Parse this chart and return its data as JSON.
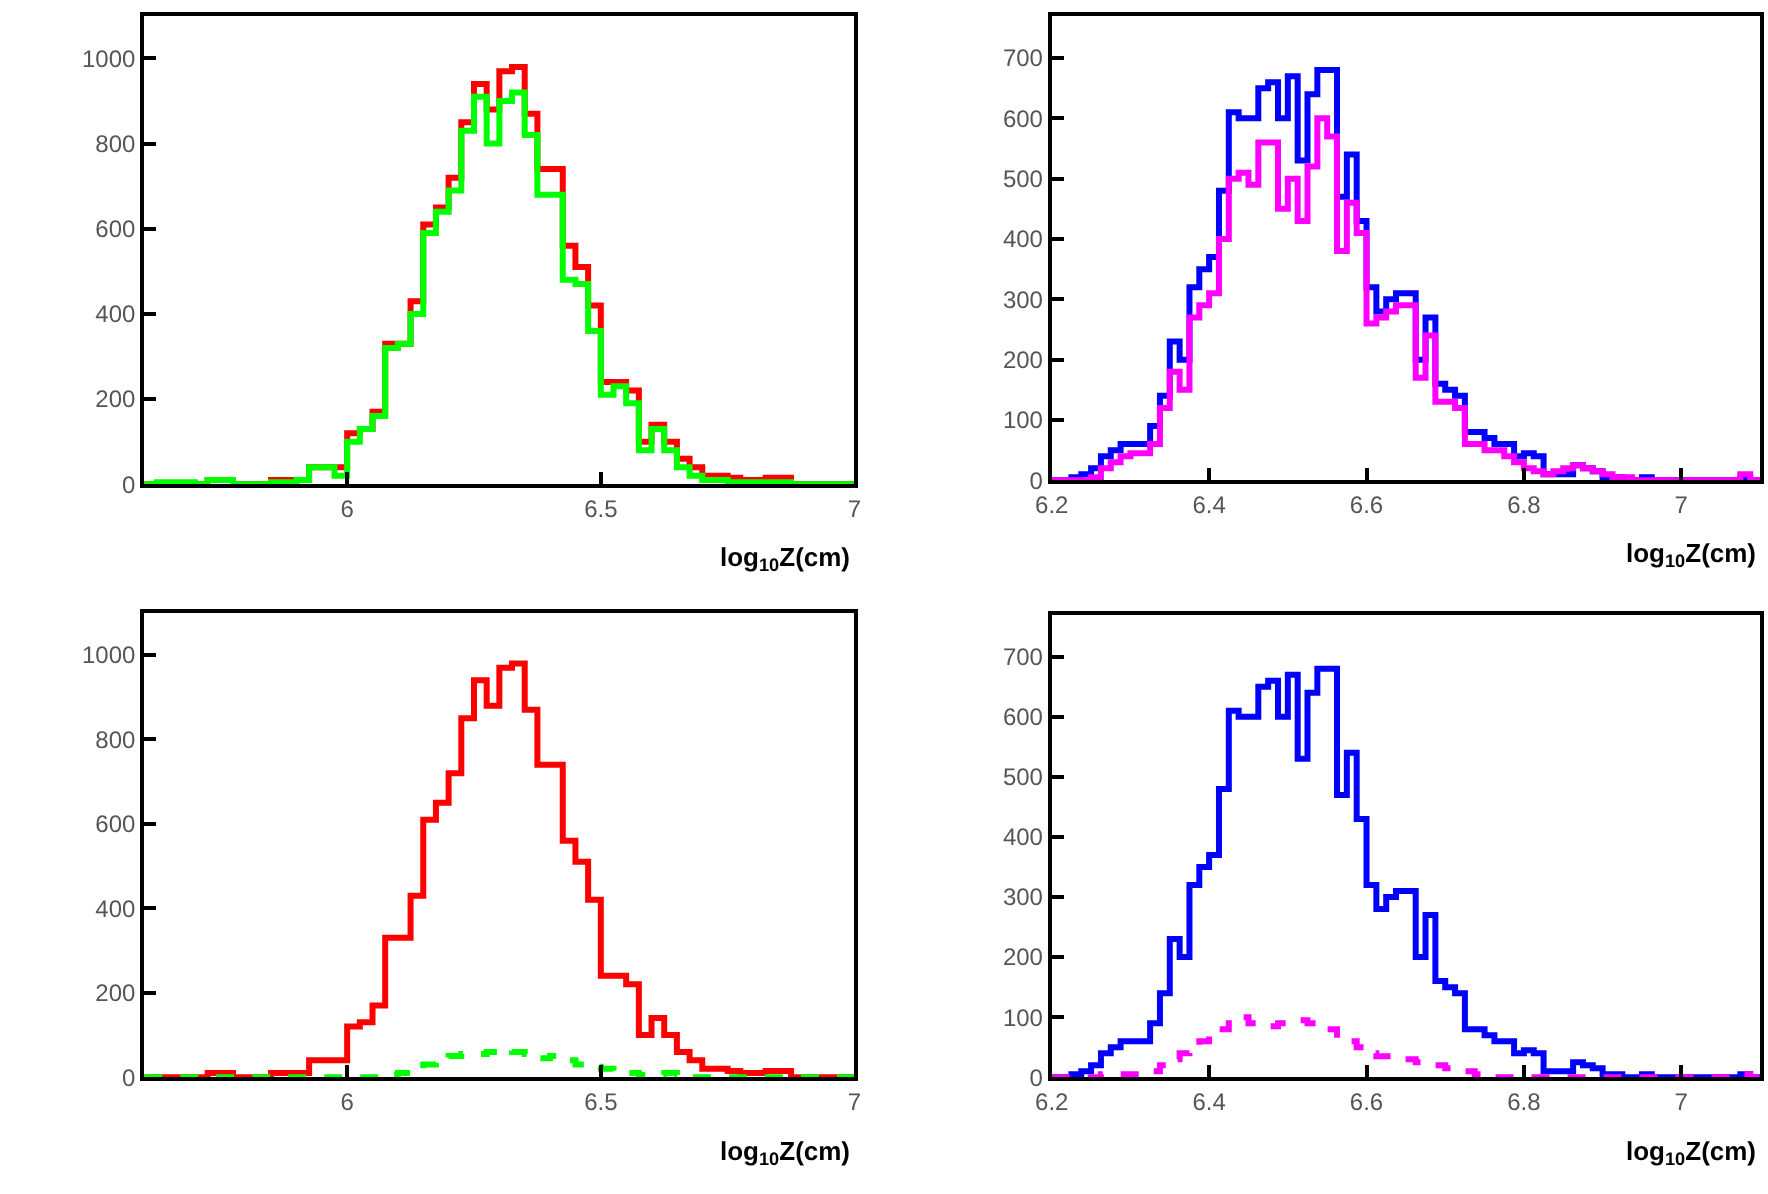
{
  "chart_data": [
    {
      "type": "histogram",
      "xlabel": "log$_{10}$Z(cm)",
      "xlim": [
        5.6,
        7
      ],
      "xticks": [
        6,
        6.5,
        7
      ],
      "ylim": [
        0,
        1100
      ],
      "yticks": [
        0,
        200,
        400,
        600,
        800,
        1000
      ],
      "grid": false,
      "bins": [
        5.6,
        5.625,
        5.65,
        5.675,
        5.7,
        5.725,
        5.75,
        5.775,
        5.8,
        5.825,
        5.85,
        5.875,
        5.9,
        5.925,
        5.95,
        5.975,
        6.0,
        6.025,
        6.05,
        6.075,
        6.1,
        6.125,
        6.15,
        6.175,
        6.2,
        6.225,
        6.25,
        6.275,
        6.3,
        6.325,
        6.35,
        6.375,
        6.4,
        6.425,
        6.45,
        6.475,
        6.5,
        6.525,
        6.55,
        6.575,
        6.6,
        6.625,
        6.65,
        6.675,
        6.7,
        6.725,
        6.75,
        6.775,
        6.8,
        6.825,
        6.85,
        6.875,
        6.9,
        6.925,
        6.95,
        6.975,
        7.0
      ],
      "series": [
        {
          "color": "#ff0000",
          "line_style": "solid",
          "values": [
            0,
            0,
            0,
            0,
            0,
            10,
            10,
            0,
            0,
            0,
            10,
            10,
            10,
            40,
            40,
            40,
            120,
            130,
            170,
            330,
            330,
            430,
            610,
            650,
            720,
            850,
            940,
            880,
            970,
            980,
            870,
            740,
            740,
            560,
            510,
            420,
            240,
            240,
            220,
            100,
            140,
            100,
            60,
            40,
            20,
            20,
            15,
            10,
            10,
            15,
            15,
            0,
            0,
            0,
            0,
            0
          ]
        },
        {
          "color": "#00ff00",
          "line_style": "solid",
          "values": [
            0,
            5,
            5,
            5,
            0,
            10,
            10,
            0,
            0,
            0,
            5,
            5,
            10,
            40,
            40,
            20,
            100,
            130,
            160,
            320,
            330,
            400,
            590,
            640,
            690,
            830,
            910,
            800,
            900,
            920,
            820,
            680,
            680,
            480,
            470,
            360,
            210,
            230,
            190,
            80,
            130,
            80,
            40,
            20,
            10,
            10,
            5,
            5,
            5,
            5,
            5,
            0,
            0,
            0,
            0,
            0
          ]
        }
      ]
    },
    {
      "type": "histogram",
      "xlabel": "log$_{10}$Z(cm)",
      "xlim": [
        6.2,
        7.1
      ],
      "xticks": [
        6.2,
        6.4,
        6.6,
        6.8,
        7
      ],
      "ylim": [
        0,
        770
      ],
      "yticks": [
        0,
        100,
        200,
        300,
        400,
        500,
        600,
        700
      ],
      "grid": false,
      "bins": [
        6.2,
        6.2125,
        6.225,
        6.2375,
        6.25,
        6.2625,
        6.275,
        6.2875,
        6.3,
        6.3125,
        6.325,
        6.3375,
        6.35,
        6.3625,
        6.375,
        6.3875,
        6.4,
        6.4125,
        6.425,
        6.4375,
        6.45,
        6.4625,
        6.475,
        6.4875,
        6.5,
        6.5125,
        6.525,
        6.5375,
        6.55,
        6.5625,
        6.575,
        6.5875,
        6.6,
        6.6125,
        6.625,
        6.6375,
        6.65,
        6.6625,
        6.675,
        6.6875,
        6.7,
        6.7125,
        6.725,
        6.7375,
        6.75,
        6.7625,
        6.775,
        6.7875,
        6.8,
        6.8125,
        6.825,
        6.8375,
        6.85,
        6.8625,
        6.875,
        6.8875,
        6.9,
        6.9125,
        6.925,
        6.9375,
        6.95,
        6.9625,
        6.975,
        6.9875,
        7.0,
        7.0125,
        7.025,
        7.0375,
        7.05,
        7.0625,
        7.075,
        7.0875,
        7.1
      ],
      "series": [
        {
          "color": "#0000ff",
          "line_style": "solid",
          "values": [
            0,
            0,
            5,
            10,
            20,
            40,
            50,
            60,
            60,
            60,
            90,
            140,
            230,
            200,
            320,
            350,
            370,
            480,
            610,
            600,
            600,
            650,
            660,
            600,
            670,
            530,
            640,
            680,
            680,
            470,
            540,
            430,
            320,
            280,
            300,
            310,
            310,
            200,
            270,
            160,
            150,
            140,
            80,
            80,
            70,
            60,
            60,
            40,
            45,
            40,
            10,
            10,
            10,
            25,
            20,
            15,
            5,
            5,
            0,
            0,
            5,
            0,
            0,
            0,
            0,
            0,
            0,
            0,
            0,
            0,
            5,
            0
          ]
        },
        {
          "color": "#ff00ff",
          "line_style": "solid",
          "values": [
            0,
            0,
            0,
            0,
            5,
            20,
            30,
            40,
            45,
            45,
            60,
            120,
            180,
            150,
            270,
            290,
            310,
            400,
            500,
            510,
            490,
            560,
            560,
            450,
            500,
            430,
            520,
            600,
            570,
            380,
            460,
            410,
            260,
            270,
            280,
            290,
            290,
            170,
            240,
            130,
            130,
            120,
            60,
            60,
            50,
            50,
            40,
            30,
            20,
            15,
            10,
            15,
            20,
            25,
            20,
            15,
            10,
            5,
            5,
            0,
            0,
            0,
            0,
            0,
            0,
            0,
            0,
            0,
            0,
            0,
            10,
            0
          ]
        }
      ]
    },
    {
      "type": "histogram",
      "xlabel": "log$_{10}$Z(cm)",
      "xlim": [
        5.6,
        7
      ],
      "xticks": [
        6,
        6.5,
        7
      ],
      "ylim": [
        0,
        1100
      ],
      "yticks": [
        0,
        200,
        400,
        600,
        800,
        1000
      ],
      "grid": false,
      "bins": [
        5.6,
        5.625,
        5.65,
        5.675,
        5.7,
        5.725,
        5.75,
        5.775,
        5.8,
        5.825,
        5.85,
        5.875,
        5.9,
        5.925,
        5.95,
        5.975,
        6.0,
        6.025,
        6.05,
        6.075,
        6.1,
        6.125,
        6.15,
        6.175,
        6.2,
        6.225,
        6.25,
        6.275,
        6.3,
        6.325,
        6.35,
        6.375,
        6.4,
        6.425,
        6.45,
        6.475,
        6.5,
        6.525,
        6.55,
        6.575,
        6.6,
        6.625,
        6.65,
        6.675,
        6.7,
        6.725,
        6.75,
        6.775,
        6.8,
        6.825,
        6.85,
        6.875,
        6.9,
        6.925,
        6.95,
        6.975,
        7.0
      ],
      "series": [
        {
          "color": "#ff0000",
          "line_style": "solid",
          "values": [
            0,
            0,
            0,
            0,
            0,
            10,
            10,
            0,
            0,
            0,
            10,
            10,
            10,
            40,
            40,
            40,
            120,
            130,
            170,
            330,
            330,
            430,
            610,
            650,
            720,
            850,
            940,
            880,
            970,
            980,
            870,
            740,
            740,
            560,
            510,
            420,
            240,
            240,
            220,
            100,
            140,
            100,
            60,
            40,
            20,
            20,
            15,
            10,
            10,
            15,
            15,
            0,
            0,
            0,
            0,
            0
          ]
        },
        {
          "color": "#00ff00",
          "line_style": "dashed",
          "values": [
            0,
            0,
            0,
            0,
            0,
            0,
            0,
            0,
            0,
            0,
            0,
            0,
            0,
            0,
            0,
            0,
            0,
            0,
            0,
            5,
            10,
            20,
            30,
            35,
            50,
            55,
            55,
            60,
            65,
            60,
            55,
            45,
            50,
            40,
            30,
            25,
            20,
            15,
            10,
            5,
            5,
            10,
            5,
            0,
            0,
            0,
            0,
            0,
            0,
            0,
            0,
            0,
            0,
            0,
            0,
            0
          ]
        }
      ]
    },
    {
      "type": "histogram",
      "xlabel": "log$_{10}$Z(cm)",
      "xlim": [
        6.2,
        7.1
      ],
      "xticks": [
        6.2,
        6.4,
        6.6,
        6.8,
        7
      ],
      "ylim": [
        0,
        770
      ],
      "yticks": [
        0,
        100,
        200,
        300,
        400,
        500,
        600,
        700
      ],
      "grid": false,
      "bins": [
        6.2,
        6.2125,
        6.225,
        6.2375,
        6.25,
        6.2625,
        6.275,
        6.2875,
        6.3,
        6.3125,
        6.325,
        6.3375,
        6.35,
        6.3625,
        6.375,
        6.3875,
        6.4,
        6.4125,
        6.425,
        6.4375,
        6.45,
        6.4625,
        6.475,
        6.4875,
        6.5,
        6.5125,
        6.525,
        6.5375,
        6.55,
        6.5625,
        6.575,
        6.5875,
        6.6,
        6.6125,
        6.625,
        6.6375,
        6.65,
        6.6625,
        6.675,
        6.6875,
        6.7,
        6.7125,
        6.725,
        6.7375,
        6.75,
        6.7625,
        6.775,
        6.7875,
        6.8,
        6.8125,
        6.825,
        6.8375,
        6.85,
        6.8625,
        6.875,
        6.8875,
        6.9,
        6.9125,
        6.925,
        6.9375,
        6.95,
        6.9625,
        6.975,
        6.9875,
        7.0,
        7.0125,
        7.025,
        7.0375,
        7.05,
        7.0625,
        7.075,
        7.0875,
        7.1
      ],
      "series": [
        {
          "color": "#0000ff",
          "line_style": "solid",
          "values": [
            0,
            0,
            5,
            10,
            20,
            40,
            50,
            60,
            60,
            60,
            90,
            140,
            230,
            200,
            320,
            350,
            370,
            480,
            610,
            600,
            600,
            650,
            660,
            600,
            670,
            530,
            640,
            680,
            680,
            470,
            540,
            430,
            320,
            280,
            300,
            310,
            310,
            200,
            270,
            160,
            150,
            140,
            80,
            80,
            70,
            60,
            60,
            40,
            45,
            40,
            10,
            10,
            10,
            25,
            20,
            15,
            5,
            5,
            0,
            0,
            5,
            0,
            0,
            0,
            0,
            0,
            0,
            0,
            0,
            0,
            5,
            0
          ]
        },
        {
          "color": "#ff00ff",
          "line_style": "dashed",
          "values": [
            0,
            0,
            0,
            0,
            0,
            5,
            5,
            5,
            5,
            5,
            10,
            20,
            30,
            40,
            50,
            60,
            70,
            80,
            95,
            100,
            90,
            90,
            85,
            90,
            90,
            95,
            90,
            85,
            80,
            65,
            60,
            50,
            40,
            35,
            35,
            30,
            30,
            25,
            20,
            20,
            15,
            10,
            10,
            5,
            0,
            0,
            0,
            0,
            0,
            0,
            0,
            0,
            0,
            0,
            0,
            0,
            0,
            0,
            0,
            0,
            0,
            0,
            0,
            0,
            0,
            0,
            0,
            0,
            0,
            0,
            5,
            0
          ]
        }
      ]
    }
  ]
}
